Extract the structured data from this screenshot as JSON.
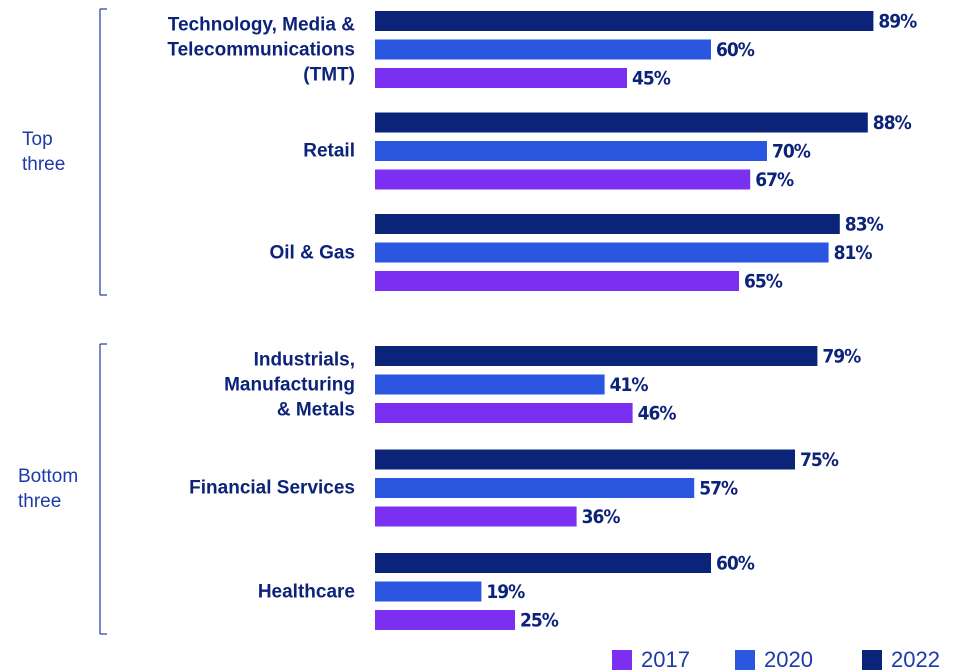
{
  "chart_data": {
    "type": "bar",
    "orientation": "horizontal",
    "groups": [
      "Top\nthree",
      "Bottom\nthree"
    ],
    "categories": [
      "Technology, Media &\nTelecommunications\n(TMT)",
      "Retail",
      "Oil & Gas",
      "Industrials,\nManufacturing\n& Metals",
      "Financial Services",
      "Healthcare"
    ],
    "series": [
      {
        "name": "2017",
        "color": "#7b2ff0",
        "values": [
          45,
          67,
          65,
          46,
          36,
          25
        ],
        "value_labels": [
          "45%",
          "67%",
          "65%",
          "46%",
          "36%",
          "25%"
        ]
      },
      {
        "name": "2020",
        "color": "#2a56e0",
        "values": [
          60,
          70,
          81,
          41,
          57,
          19
        ],
        "value_labels": [
          "60%",
          "70%",
          "81%",
          "41%",
          "57%",
          "19%"
        ]
      },
      {
        "name": "2022",
        "color": "#0c237a",
        "values": [
          89,
          88,
          83,
          79,
          75,
          60
        ],
        "value_labels": [
          "89%",
          "88%",
          "83%",
          "79%",
          "75%",
          "60%"
        ]
      }
    ]
  }
}
